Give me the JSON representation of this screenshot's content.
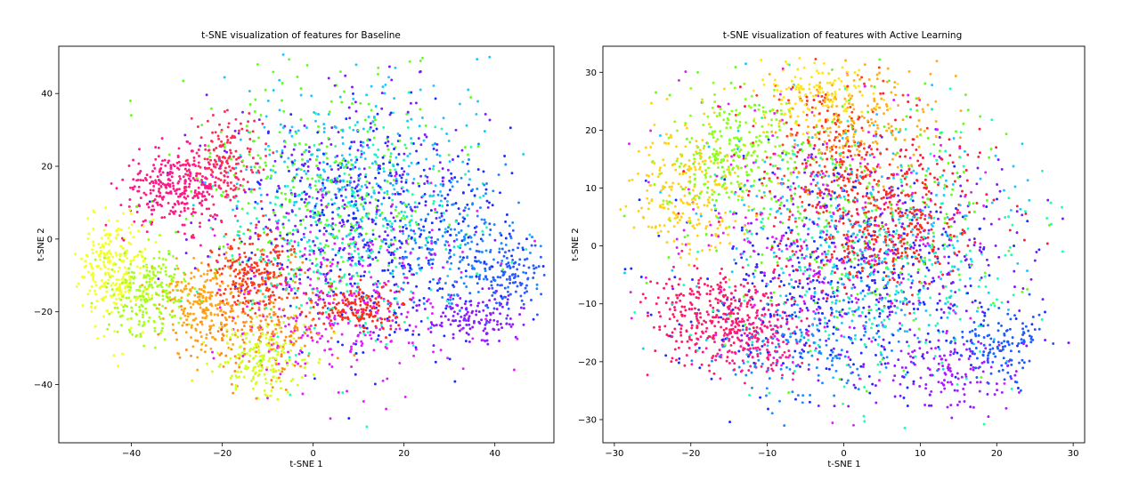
{
  "figure": {
    "background": "#ffffff"
  },
  "chart_data": [
    {
      "type": "scatter",
      "title": "t-SNE visualization of features for Baseline",
      "xlabel": "t-SNE 1",
      "ylabel": "t-SNE 2",
      "xlim": [
        -56,
        53
      ],
      "ylim": [
        -56,
        53
      ],
      "xticks": [
        -40,
        -20,
        0,
        20,
        40
      ],
      "yticks": [
        -40,
        -20,
        0,
        20,
        40
      ],
      "grid": false,
      "legend": "none",
      "point_count": 5000,
      "clusters": [
        {
          "color": "#ff1a8c",
          "cx": -30,
          "cy": 14,
          "sx": 6,
          "sy": 5,
          "n": 320
        },
        {
          "color": "#ff2d55",
          "cx": -19,
          "cy": 22,
          "sx": 4,
          "sy": 6,
          "n": 160
        },
        {
          "color": "#f4ff2a",
          "cx": -44,
          "cy": -8,
          "sx": 4,
          "sy": 8,
          "n": 260
        },
        {
          "color": "#a6ff1a",
          "cx": -36,
          "cy": -15,
          "sx": 4,
          "sy": 6,
          "n": 230
        },
        {
          "color": "#ffa51a",
          "cx": -24,
          "cy": -18,
          "sx": 5,
          "sy": 6,
          "n": 230
        },
        {
          "color": "#ff3b1a",
          "cx": -13,
          "cy": -9,
          "sx": 5,
          "sy": 6,
          "n": 230
        },
        {
          "color": "#d4ff1a",
          "cx": -11,
          "cy": -33,
          "sx": 5,
          "sy": 5,
          "n": 200
        },
        {
          "color": "#ff2a1a",
          "cx": 9,
          "cy": -19,
          "sx": 5,
          "sy": 3,
          "n": 170
        },
        {
          "color": "#1a2dff",
          "cx": 16,
          "cy": 2,
          "sx": 14,
          "sy": 16,
          "n": 360
        },
        {
          "color": "#7a1aff",
          "cx": 5,
          "cy": 10,
          "sx": 14,
          "sy": 15,
          "n": 330
        },
        {
          "color": "#1ac8ff",
          "cx": 10,
          "cy": 18,
          "sx": 14,
          "sy": 14,
          "n": 300
        },
        {
          "color": "#1affb3",
          "cx": 6,
          "cy": 0,
          "sx": 14,
          "sy": 15,
          "n": 300
        },
        {
          "color": "#e61aff",
          "cx": 6,
          "cy": -18,
          "sx": 14,
          "sy": 12,
          "n": 320
        },
        {
          "color": "#5eff1a",
          "cx": 2,
          "cy": 14,
          "sx": 16,
          "sy": 15,
          "n": 300
        },
        {
          "color": "#ff8c1a",
          "cx": -10,
          "cy": -25,
          "sx": 9,
          "sy": 8,
          "n": 200
        },
        {
          "color": "#2a5cff",
          "cx": 42,
          "cy": -10,
          "sx": 4,
          "sy": 5,
          "n": 140
        },
        {
          "color": "#1a8cff",
          "cx": 30,
          "cy": 0,
          "sx": 8,
          "sy": 10,
          "n": 200
        },
        {
          "color": "#8c1aff",
          "cx": 35,
          "cy": -22,
          "sx": 5,
          "sy": 4,
          "n": 130
        }
      ]
    },
    {
      "type": "scatter",
      "title": "t-SNE visualization of features with Active Learning",
      "xlabel": "t-SNE 1",
      "ylabel": "t-SNE 2",
      "xlim": [
        -31.5,
        31.5
      ],
      "ylim": [
        -34,
        34.5
      ],
      "xticks": [
        -30,
        -20,
        -10,
        0,
        10,
        20,
        30
      ],
      "yticks": [
        -30,
        -20,
        -10,
        0,
        10,
        20,
        30
      ],
      "grid": false,
      "legend": "none",
      "point_count": 5000,
      "clusters": [
        {
          "color": "#ff1a66",
          "cx": -17,
          "cy": -12,
          "sx": 4,
          "sy": 4,
          "n": 280
        },
        {
          "color": "#ff1a8c",
          "cx": -12,
          "cy": -16,
          "sx": 4,
          "sy": 4,
          "n": 180
        },
        {
          "color": "#ffd21a",
          "cx": -20,
          "cy": 10,
          "sx": 4,
          "sy": 6,
          "n": 250
        },
        {
          "color": "#8cff1a",
          "cx": -14,
          "cy": 16,
          "sx": 4,
          "sy": 5,
          "n": 250
        },
        {
          "color": "#ff2a1a",
          "cx": 7,
          "cy": 3,
          "sx": 4,
          "sy": 5,
          "n": 240
        },
        {
          "color": "#ff3b1a",
          "cx": -1,
          "cy": 14,
          "sx": 4,
          "sy": 8,
          "n": 220
        },
        {
          "color": "#ffae1a",
          "cx": 2,
          "cy": 22,
          "sx": 5,
          "sy": 5,
          "n": 200
        },
        {
          "color": "#1a2dff",
          "cx": 0,
          "cy": -6,
          "sx": 10,
          "sy": 10,
          "n": 360
        },
        {
          "color": "#7a1aff",
          "cx": 5,
          "cy": -4,
          "sx": 10,
          "sy": 11,
          "n": 320
        },
        {
          "color": "#1ac8ff",
          "cx": 2,
          "cy": 0,
          "sx": 11,
          "sy": 11,
          "n": 320
        },
        {
          "color": "#1affb3",
          "cx": 4,
          "cy": -3,
          "sx": 11,
          "sy": 11,
          "n": 300
        },
        {
          "color": "#e61aff",
          "cx": -2,
          "cy": 2,
          "sx": 11,
          "sy": 12,
          "n": 300
        },
        {
          "color": "#5eff1a",
          "cx": 0,
          "cy": 6,
          "sx": 12,
          "sy": 12,
          "n": 280
        },
        {
          "color": "#ff1a3b",
          "cx": 4,
          "cy": 8,
          "sx": 9,
          "sy": 9,
          "n": 220
        },
        {
          "color": "#1a5cff",
          "cx": 20,
          "cy": -17,
          "sx": 3,
          "sy": 3,
          "n": 130
        },
        {
          "color": "#a61aff",
          "cx": 14,
          "cy": -22,
          "sx": 4,
          "sy": 3,
          "n": 120
        },
        {
          "color": "#ffe61a",
          "cx": -4,
          "cy": 26,
          "sx": 4,
          "sy": 3,
          "n": 140
        },
        {
          "color": "#1a8cff",
          "cx": -6,
          "cy": -18,
          "sx": 6,
          "sy": 5,
          "n": 150
        }
      ]
    }
  ]
}
